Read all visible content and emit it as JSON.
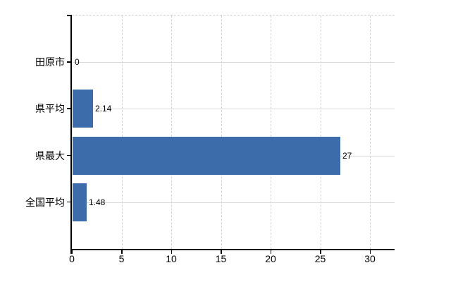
{
  "chart_data": {
    "type": "bar",
    "orientation": "horizontal",
    "title": "",
    "xlabel": "",
    "ylabel": "",
    "categories": [
      "田原市",
      "県平均",
      "県最大",
      "全国平均"
    ],
    "values": [
      0,
      2.14,
      27,
      1.48
    ],
    "value_labels": [
      "0",
      "2.14",
      "27",
      "1.48"
    ],
    "xticks": [
      0,
      5,
      10,
      15,
      20,
      25,
      30
    ],
    "xtick_labels": [
      "0",
      "5",
      "10",
      "15",
      "20",
      "25",
      "30"
    ],
    "xlim": [
      0,
      32.5
    ],
    "grid": true,
    "legend": false,
    "bar_color": "#3c6caa",
    "background_color": "#ffffff",
    "gridline_color": "#dadada",
    "axis_color": "#000000",
    "text_color": "#000000"
  }
}
